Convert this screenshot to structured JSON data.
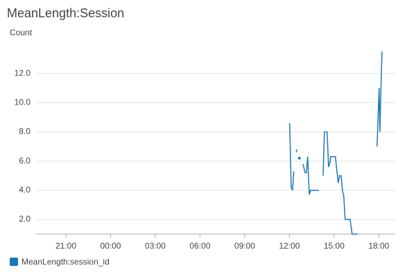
{
  "chart_data": {
    "type": "line",
    "title": "MeanLength:Session",
    "ylabel": "Count",
    "x": [
      36.02,
      36.12,
      36.21,
      36.3,
      null,
      36.44,
      36.53,
      null,
      36.67,
      null,
      36.91,
      37.05,
      37.14,
      37.23,
      37.33,
      37.42,
      37.98,
      null,
      38.26,
      38.35,
      38.53,
      38.63,
      38.72,
      38.77,
      39.09,
      39.19,
      39.28,
      39.37,
      39.47,
      39.56,
      39.65,
      39.74,
      40.07,
      40.21,
      40.58,
      null,
      41.88,
      42.02,
      42.07,
      42.21
    ],
    "series": [
      {
        "name": "MeanLength:session_id",
        "color": "#1f77b4",
        "values": [
          8.6,
          4.2,
          4.0,
          5.3,
          null,
          6.6,
          6.8,
          null,
          6.2,
          null,
          5.8,
          5.2,
          5.2,
          6.3,
          3.7,
          4.0,
          4.0,
          null,
          5.0,
          8.0,
          8.0,
          5.6,
          5.9,
          6.3,
          6.3,
          5.3,
          4.5,
          5.0,
          5.0,
          4.0,
          3.6,
          2.0,
          2.0,
          1.0,
          1.0,
          null,
          7.0,
          11.0,
          8.0,
          13.5
        ]
      }
    ],
    "xlim": [
      19,
      43.1
    ],
    "xticks": [
      {
        "value": 21,
        "label": "21:00"
      },
      {
        "value": 24,
        "label": "00:00"
      },
      {
        "value": 27,
        "label": "03:00"
      },
      {
        "value": 30,
        "label": "06:00"
      },
      {
        "value": 33,
        "label": "09:00"
      },
      {
        "value": 36,
        "label": "12:00"
      },
      {
        "value": 39,
        "label": "15:00"
      },
      {
        "value": 42,
        "label": "18:00"
      }
    ],
    "ylim": [
      1,
      14
    ],
    "yticks": [
      {
        "value": 2,
        "label": "2.0"
      },
      {
        "value": 4,
        "label": "4.0"
      },
      {
        "value": 6,
        "label": "6.0"
      },
      {
        "value": 8,
        "label": "8.0"
      },
      {
        "value": 10,
        "label": "10.0"
      },
      {
        "value": 12,
        "label": "12.0"
      }
    ],
    "grid": true,
    "legend": "bottom-left"
  }
}
